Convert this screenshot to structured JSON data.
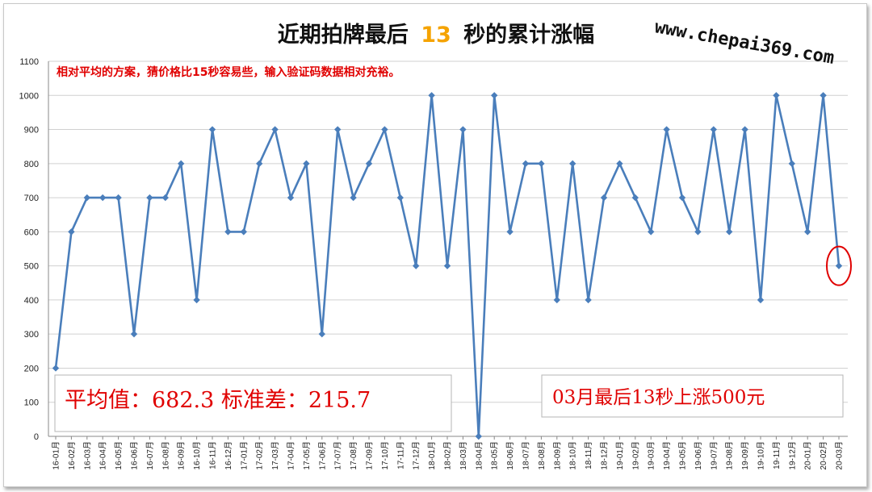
{
  "chart_data": {
    "type": "line",
    "title_prefix": "近期拍牌最后",
    "title_number": "13",
    "title_suffix": "秒的累计涨幅",
    "watermark": "www.chepai369.com",
    "subtitle": "相对平均的方案，猜价格比15秒容易些，输入验证码数据相对充裕。",
    "ylim": [
      0,
      1100
    ],
    "yticks": [
      0,
      100,
      200,
      300,
      400,
      500,
      600,
      700,
      800,
      900,
      1000,
      1100
    ],
    "grid": true,
    "categories": [
      "16-01月",
      "16-02月",
      "16-03月",
      "16-04月",
      "16-05月",
      "16-06月",
      "16-07月",
      "16-08月",
      "16-09月",
      "16-10月",
      "16-11月",
      "16-12月",
      "17-01月",
      "17-02月",
      "17-03月",
      "17-04月",
      "17-05月",
      "17-06月",
      "17-07月",
      "17-08月",
      "17-09月",
      "17-10月",
      "17-11月",
      "17-12月",
      "18-01月",
      "18-02月",
      "18-03月",
      "18-04月",
      "18-05月",
      "18-06月",
      "18-07月",
      "18-08月",
      "18-09月",
      "18-10月",
      "18-11月",
      "18-12月",
      "19-01月",
      "19-02月",
      "19-03月",
      "19-04月",
      "19-05月",
      "19-06月",
      "19-07月",
      "19-08月",
      "19-09月",
      "19-10月",
      "19-11月",
      "19-12月",
      "20-01月",
      "20-02月",
      "20-03月"
    ],
    "series": [
      {
        "color": "#4a7ebb",
        "values": [
          200,
          600,
          700,
          700,
          700,
          300,
          700,
          700,
          800,
          400,
          900,
          600,
          600,
          800,
          900,
          700,
          800,
          300,
          900,
          700,
          800,
          900,
          700,
          500,
          1000,
          500,
          900,
          0,
          1000,
          600,
          800,
          800,
          400,
          800,
          400,
          700,
          800,
          700,
          600,
          900,
          700,
          600,
          900,
          600,
          900,
          400,
          1000,
          800,
          600,
          1000,
          500
        ]
      }
    ],
    "highlight_index": 50,
    "highlight_color": "#e00000",
    "annotations": {
      "stats": "平均值：682.3 标准差：215.7",
      "note": "03月最后13秒上涨500元"
    }
  }
}
